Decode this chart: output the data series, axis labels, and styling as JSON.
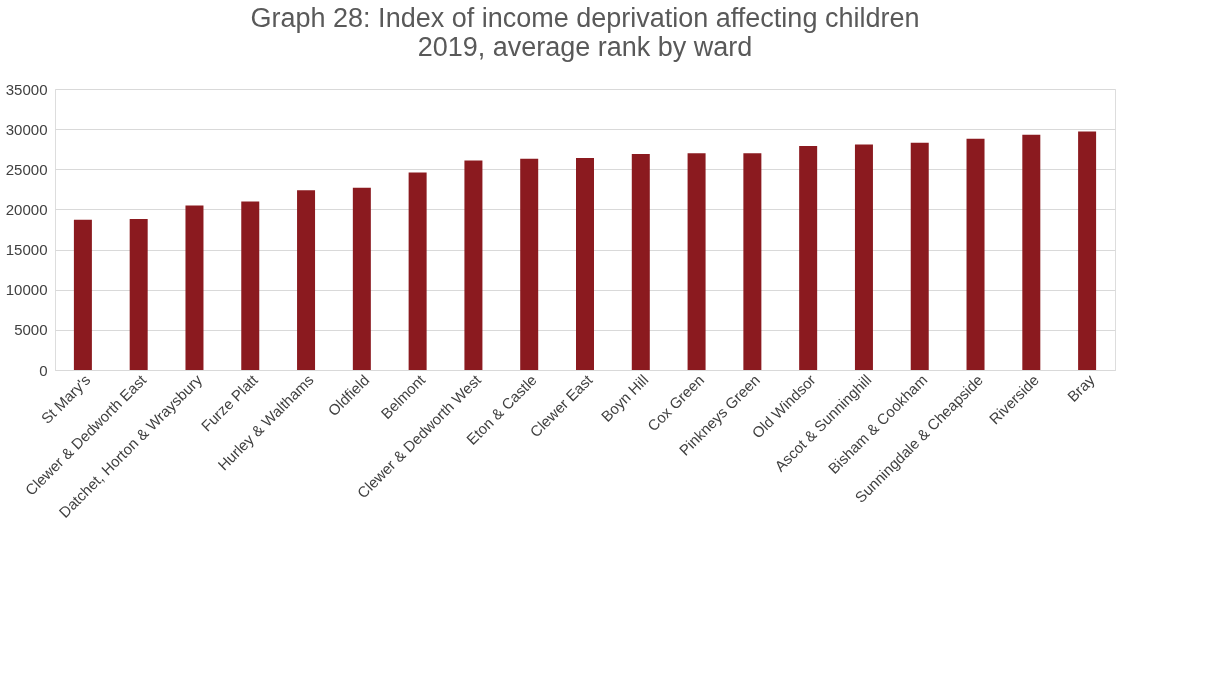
{
  "chart_data": {
    "type": "bar",
    "title": [
      "Graph 28: Index of income deprivation affecting children",
      "2019, average rank by ward"
    ],
    "categories": [
      "St Mary's",
      "Clewer & Dedworth East",
      "Datchet, Horton & Wraysbury",
      "Furze Platt",
      "Hurley & Walthams",
      "Oldfield",
      "Belmont",
      "Clewer & Dedworth West",
      "Eton & Castle",
      "Clewer East",
      "Boyn Hill",
      "Cox Green",
      "Pinkneys Green",
      "Old Windsor",
      "Ascot & Sunninghill",
      "Bisham & Cookham",
      "Sunningdale & Cheapside",
      "Riverside",
      "Bray"
    ],
    "values": [
      18700,
      18800,
      20500,
      21000,
      22400,
      22700,
      24600,
      26100,
      26300,
      26400,
      26900,
      27000,
      27000,
      27900,
      28100,
      28300,
      28800,
      29300,
      29700
    ],
    "color": "#8b1a1f",
    "ylim": [
      0,
      35000
    ],
    "yticks": [
      0,
      5000,
      10000,
      15000,
      20000,
      25000,
      30000,
      35000
    ],
    "grid": "y"
  }
}
